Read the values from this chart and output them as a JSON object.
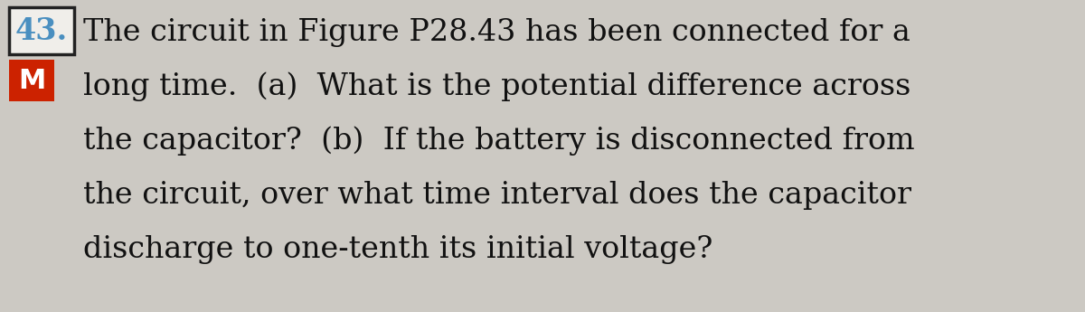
{
  "background_color": "#ccc9c3",
  "number_label": "43.",
  "number_color": "#4a8fc0",
  "number_box_facecolor": "#f0eeea",
  "number_box_edgecolor": "#222222",
  "m_label": "M",
  "m_box_color": "#cc2200",
  "m_text_color": "#ffffff",
  "text_lines": [
    "The circuit in Figure P28.43 has been connected for a",
    "long time.  (a)  What is the potential difference across",
    "the capacitor?  (b)  If the battery is disconnected from",
    "the circuit, over what time interval does the capacitor",
    "discharge to one-tenth its initial voltage?"
  ],
  "text_color": "#111111",
  "font_size": 24,
  "label_font_size": 24,
  "m_font_size": 22,
  "fig_width": 12.0,
  "fig_height": 3.45,
  "dpi": 100
}
